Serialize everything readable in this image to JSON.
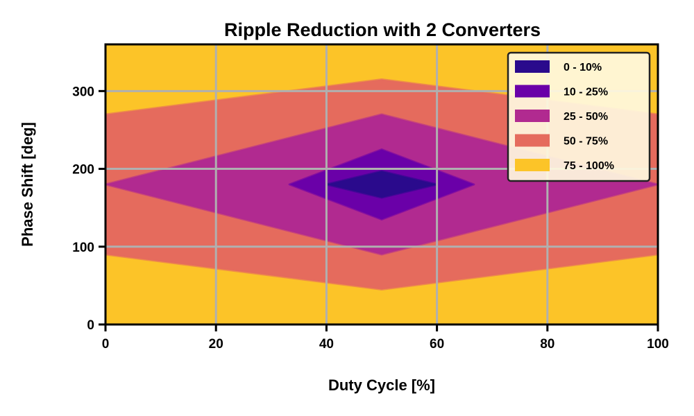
{
  "chart_data": {
    "type": "contour",
    "title": "Ripple Reduction with 2 Converters",
    "xlabel": "Duty Cycle [%]",
    "ylabel": "Phase Shift [deg]",
    "xlim": [
      0,
      100
    ],
    "ylim": [
      0,
      360
    ],
    "x_ticks": [
      0,
      20,
      40,
      60,
      80,
      100
    ],
    "y_ticks": [
      0,
      100,
      200,
      300
    ],
    "grid": true,
    "legend_position": "top-right",
    "levels": [
      {
        "label": "0 - 10%",
        "color": "#2a0a8c"
      },
      {
        "label": "10 - 25%",
        "color": "#6a00a8"
      },
      {
        "label": "25 - 50%",
        "color": "#b12a90"
      },
      {
        "label": "50 - 75%",
        "color": "#e56b5d"
      },
      {
        "label": "75 - 100%",
        "color": "#fcc428"
      }
    ],
    "contour_regions": [
      {
        "level": "75 - 100%",
        "polygon": [
          [
            0,
            0
          ],
          [
            100,
            0
          ],
          [
            100,
            360
          ],
          [
            0,
            360
          ]
        ]
      },
      {
        "level": "50 - 75%",
        "polygon": [
          [
            0,
            90
          ],
          [
            50,
            45
          ],
          [
            100,
            90
          ],
          [
            100,
            270
          ],
          [
            50,
            315
          ],
          [
            0,
            270
          ]
        ]
      },
      {
        "level": "25 - 50%",
        "polygon": [
          [
            0,
            180
          ],
          [
            50,
            90
          ],
          [
            100,
            180
          ],
          [
            50,
            270
          ]
        ]
      },
      {
        "level": "10 - 25%",
        "polygon": [
          [
            33.3,
            180
          ],
          [
            50,
            135
          ],
          [
            66.7,
            180
          ],
          [
            50,
            225
          ]
        ]
      },
      {
        "level": "0 - 10%",
        "polygon": [
          [
            40,
            180
          ],
          [
            50,
            163
          ],
          [
            60,
            180
          ],
          [
            50,
            197
          ]
        ]
      }
    ]
  }
}
